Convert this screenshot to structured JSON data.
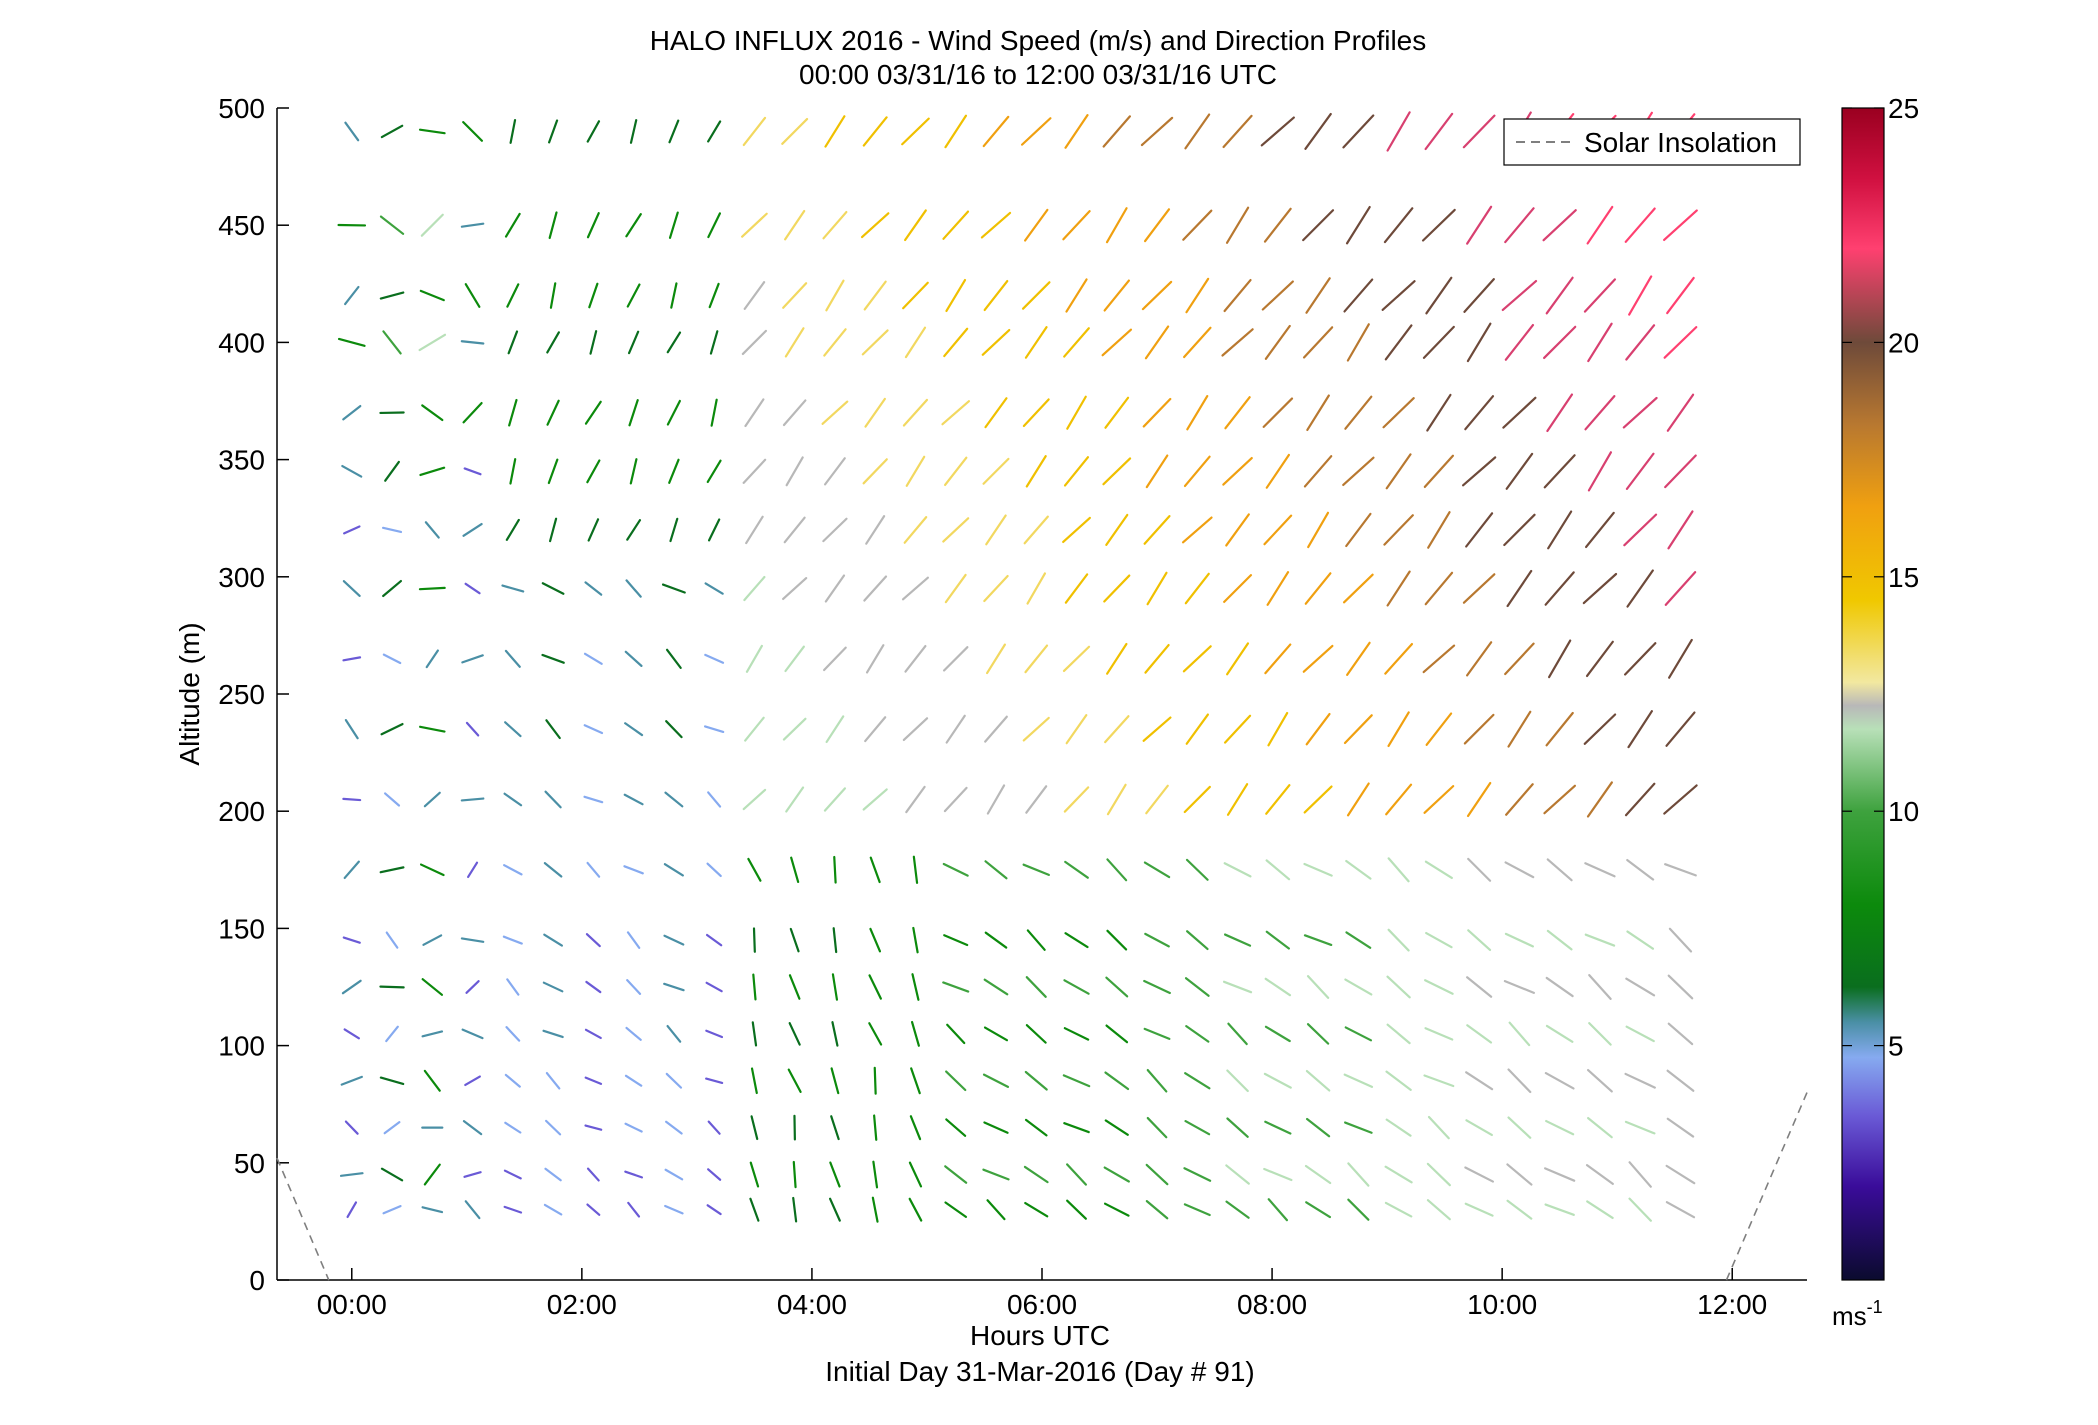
{
  "header": {
    "title": "HALO INFLUX 2016 - Wind Speed (m/s) and Direction Profiles",
    "subtitle": "00:00 03/31/16 to 12:00 03/31/16  UTC"
  },
  "footer": {
    "xlabel": "Hours UTC",
    "initial_day": "Initial Day 31-Mar-2016 (Day # 91)"
  },
  "legend": {
    "label": "Solar Insolation"
  },
  "colorbar": {
    "unit_base": "ms",
    "unit_exp": "-1",
    "ticks": [
      "5",
      "10",
      "15",
      "20",
      "25"
    ],
    "range": [
      0,
      25
    ]
  },
  "chart_data": {
    "type": "wind-barb-quiver",
    "title": "HALO INFLUX 2016 - Wind Speed (m/s) and Direction Profiles",
    "xlabel": "Hours UTC",
    "ylabel": "Altitude (m)",
    "xlim": [
      -0.65,
      12.65
    ],
    "ylim": [
      0,
      500
    ],
    "xticks": [
      "00:00",
      "02:00",
      "04:00",
      "06:00",
      "08:00",
      "10:00",
      "12:00"
    ],
    "xtick_values": [
      0,
      2,
      4,
      6,
      8,
      10,
      12
    ],
    "yticks": [
      "0",
      "50",
      "100",
      "150",
      "200",
      "250",
      "300",
      "350",
      "400",
      "450",
      "500"
    ],
    "ytick_values": [
      0,
      50,
      100,
      150,
      200,
      250,
      300,
      350,
      400,
      450,
      500
    ],
    "altitudes_m": [
      30,
      45,
      65,
      85,
      105,
      125,
      145,
      175,
      205,
      235,
      265,
      295,
      320,
      345,
      370,
      400,
      420,
      450,
      490
    ],
    "time_start_h": 0,
    "time_step_h": 0.35,
    "time_count": 34,
    "solar_insolation": {
      "style": "dashed",
      "color": "#7f7f7f",
      "x_h": [
        -0.65,
        -0.2,
        11.95,
        12.65
      ],
      "y_m": [
        52,
        0,
        0,
        80
      ]
    },
    "wind_speed_colorscale": [
      "#0b0b2e",
      "#3a0c9a",
      "#6a5ad6",
      "#86aaf0",
      "#4a8fa5",
      "#0a6e1e",
      "#0c8a0c",
      "#3ea23e",
      "#b8e0b8",
      "#b8b8b8",
      "#f2d860",
      "#f0c000",
      "#f0a010",
      "#b87830",
      "#6e4a3a",
      "#d84070",
      "#ff4070",
      "#d01040",
      "#9a0020"
    ]
  }
}
